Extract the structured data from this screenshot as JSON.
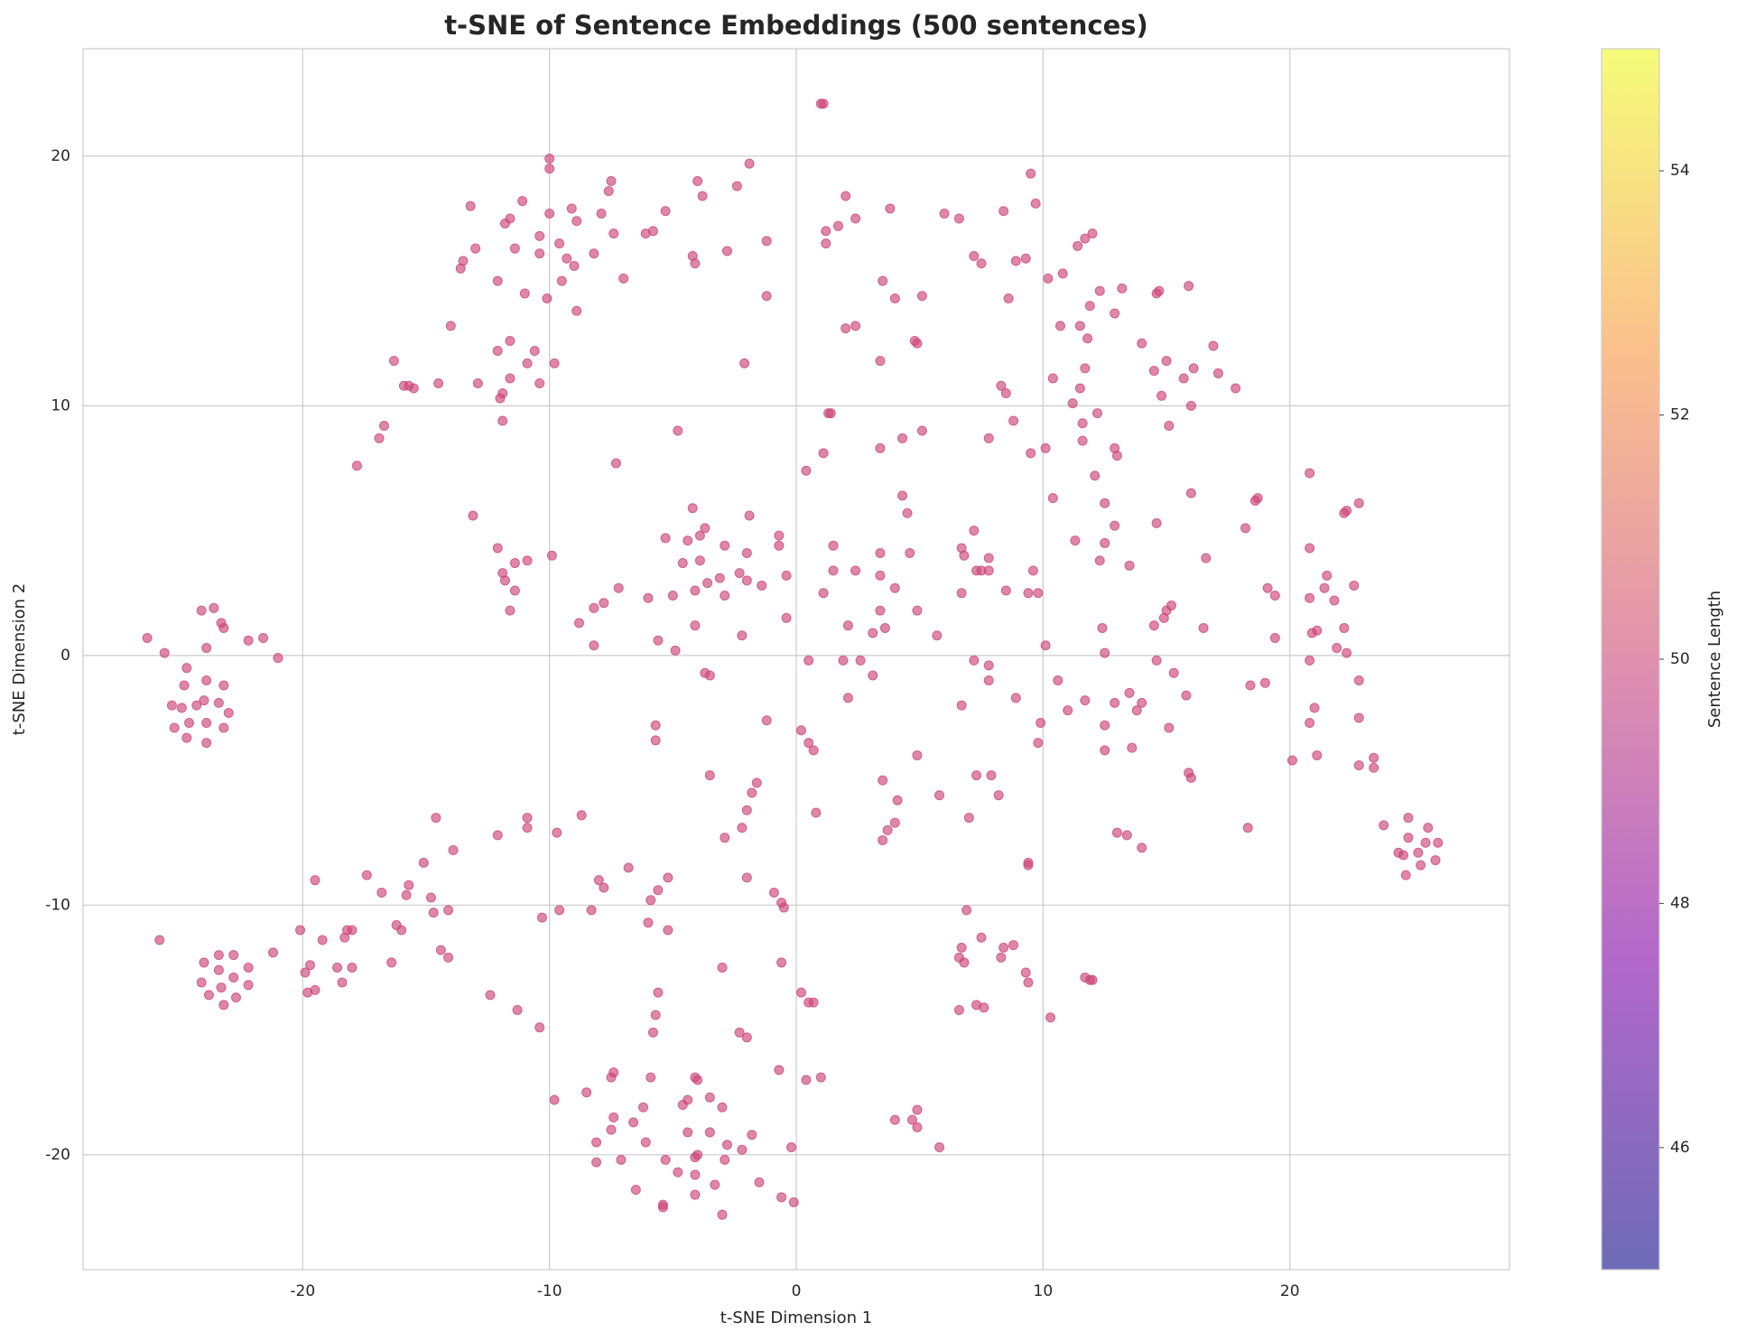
{
  "chart_data": {
    "type": "scatter",
    "title": "t-SNE of Sentence Embeddings (500 sentences)",
    "x_label": "t-SNE Dimension 1",
    "y_label": "t-SNE Dimension 2",
    "color": "#cc4778",
    "grid": true,
    "xlim": [
      -28.9,
      28.9
    ],
    "ylim": [
      -24.6,
      24.3
    ],
    "xticks": [
      -20,
      -10,
      0,
      10,
      20
    ],
    "yticks": [
      -20,
      -10,
      0,
      10,
      20
    ],
    "colorbar": {
      "label": "Sentence Length",
      "colormap": "plasma",
      "lim": [
        45,
        55
      ],
      "ticks": [
        46,
        48,
        50,
        52,
        54
      ]
    },
    "x": [
      -26.3,
      -25.6,
      -24.1,
      -23.6,
      -23.3,
      -23.2,
      -22.2,
      -21.6,
      -21.0,
      -23.9,
      -24.7,
      -24.8,
      -23.9,
      -23.2,
      -25.3,
      -24.9,
      -24.3,
      -24.0,
      -23.4,
      -23.0,
      -24.6,
      -23.9,
      -25.2,
      -23.2,
      -24.7,
      -23.9,
      -25.8,
      -24.0,
      -23.4,
      -22.8,
      -23.4,
      -22.2,
      -24.1,
      -23.3,
      -22.8,
      -22.2,
      -23.8,
      -22.7,
      -23.2,
      23.8,
      24.8,
      25.6,
      24.8,
      25.5,
      26.0,
      24.4,
      24.6,
      25.2,
      25.9,
      25.3,
      24.7,
      -17.8,
      -16.9,
      -16.7,
      -16.3,
      -15.9,
      -15.7,
      -15.5,
      -14.5,
      -14.0,
      -13.6,
      -13.5,
      -13.2,
      -13.0,
      -12.9,
      -12.1,
      -12.1,
      -12.0,
      -11.9,
      -11.9,
      -11.8,
      -11.6,
      -11.6,
      -11.6,
      -11.4,
      -11.1,
      -11.0,
      -10.9,
      -10.6,
      -10.4,
      -10.4,
      -10.4,
      -10.1,
      -10.0,
      -10.0,
      -10.0,
      -9.8,
      -9.6,
      -9.5,
      -9.3,
      -9.1,
      -9.0,
      -8.9,
      -8.9,
      -8.2,
      -7.9,
      -7.6,
      -7.5,
      -7.4,
      -7.0,
      -7.3,
      -5.3,
      -6.1,
      -5.8,
      -4.8,
      -4.2,
      -4.1,
      -4.0,
      -3.8,
      -2.8,
      -2.4,
      -1.9,
      -1.2,
      -1.2,
      -2.1,
      1.0,
      1.1,
      1.2,
      1.2,
      1.1,
      1.4,
      1.3,
      1.7,
      2.0,
      2.0,
      2.4,
      2.4,
      3.8,
      3.4,
      3.5,
      3.4,
      4.0,
      4.3,
      4.8,
      4.9,
      5.1,
      5.1,
      6.0,
      6.6,
      7.2,
      7.5,
      7.8,
      8.3,
      8.4,
      8.6,
      8.5,
      8.8,
      8.9,
      9.3,
      9.5,
      9.7,
      9.5,
      10.1,
      10.2,
      10.4,
      10.8,
      10.7,
      11.2,
      11.4,
      11.5,
      11.5,
      11.6,
      11.6,
      11.7,
      11.7,
      11.8,
      11.9,
      12.0,
      12.1,
      12.2,
      12.3,
      12.9,
      12.9,
      13.0,
      13.2,
      14.0,
      14.5,
      14.6,
      14.7,
      14.8,
      15.0,
      15.1,
      15.7,
      15.9,
      16.1,
      16.0,
      16.9,
      17.1,
      17.8,
      -13.1,
      -12.1,
      -11.9,
      -11.8,
      -11.6,
      -11.4,
      -11.4,
      -10.9,
      -9.9,
      -8.8,
      -8.2,
      -8.2,
      -7.8,
      -7.2,
      -6.0,
      -5.6,
      -5.3,
      -5.0,
      -4.9,
      -4.6,
      -4.4,
      -4.2,
      -4.1,
      -4.1,
      -3.9,
      -3.9,
      -3.7,
      -3.6,
      -3.7,
      -3.5,
      -3.1,
      -2.9,
      -2.9,
      -2.3,
      -2.2,
      -2.0,
      -1.9,
      -2.0,
      -1.4,
      -0.7,
      -0.7,
      -0.4,
      -0.4,
      0.4,
      0.5,
      1.1,
      1.5,
      1.5,
      1.9,
      2.1,
      2.1,
      2.4,
      2.6,
      3.1,
      3.1,
      3.4,
      3.4,
      3.4,
      3.6,
      4.0,
      4.3,
      4.5,
      4.6,
      4.9,
      5.7,
      6.7,
      6.8,
      6.7,
      6.7,
      7.2,
      7.2,
      7.3,
      7.5,
      7.8,
      7.8,
      7.8,
      7.8,
      8.5,
      8.9,
      9.4,
      9.6,
      9.8,
      10.1,
      9.8,
      9.9,
      10.4,
      10.6,
      11.0,
      11.3,
      11.7,
      12.3,
      12.4,
      12.5,
      12.5,
      12.5,
      12.5,
      12.5,
      12.9,
      12.9,
      13.5,
      13.5,
      13.6,
      13.8,
      14.0,
      14.5,
      14.6,
      14.6,
      14.9,
      15.0,
      15.2,
      15.1,
      15.3,
      15.8,
      15.9,
      16.0,
      16.0,
      16.5,
      16.6,
      18.2,
      18.4,
      18.7,
      18.6,
      19.0,
      19.1,
      19.4,
      19.4,
      20.1,
      20.8,
      20.8,
      20.8,
      20.8,
      20.8,
      21.0,
      20.9,
      21.1,
      21.1,
      21.4,
      21.5,
      21.8,
      21.9,
      22.2,
      22.3,
      22.2,
      22.3,
      22.6,
      22.8,
      22.8,
      22.8,
      22.8,
      23.4,
      23.4,
      18.3,
      -14.6,
      -13.9,
      -15.1,
      -14.8,
      -14.7,
      -14.1,
      -15.7,
      -15.8,
      -16.2,
      -16.0,
      -16.4,
      -16.8,
      -17.4,
      -14.4,
      -14.1,
      -12.4,
      -12.1,
      -11.3,
      -10.9,
      -10.9,
      -10.4,
      -10.3,
      -9.7,
      -9.6,
      -8.7,
      -8.3,
      -8.0,
      -7.8,
      -6.8,
      -5.7,
      -5.7,
      -5.6,
      -5.2,
      -5.2,
      -5.9,
      -6.0,
      -3.5,
      -2.9,
      -2.2,
      -2.0,
      -1.8,
      -1.6,
      -1.2,
      -2.0,
      -0.9,
      -0.6,
      -0.5,
      -0.6,
      -3.0,
      0.2,
      0.5,
      0.7,
      0.8,
      3.5,
      4.1,
      4.0,
      3.7,
      3.5,
      4.9,
      5.8,
      7.0,
      7.3,
      7.9,
      8.2,
      9.4,
      9.4,
      13.0,
      13.4,
      14.0,
      -20.1,
      -19.5,
      -19.7,
      -19.2,
      -18.6,
      -18.3,
      -18.2,
      -18.0,
      -18.0,
      -19.9,
      -19.8,
      -19.5,
      -18.4,
      -21.2,
      6.9,
      6.6,
      6.8,
      6.7,
      7.5,
      8.3,
      8.4,
      8.8,
      9.3,
      9.4,
      6.6,
      7.3,
      7.6,
      10.3,
      11.7,
      11.9,
      12.0,
      0.2,
      0.5,
      0.7,
      -5.6,
      -5.7,
      -5.8,
      -2.3,
      -2.0,
      -0.7,
      -7.4,
      -7.5,
      -5.9,
      -4.1,
      -4.0,
      0.4,
      1.0,
      -9.8,
      -8.5,
      -6.2,
      -4.6,
      -4.4,
      -3.5,
      -3.0,
      -7.4,
      -7.5,
      -8.1,
      -6.6,
      -6.1,
      -4.4,
      -3.5,
      -2.8,
      -2.2,
      -1.8,
      -0.2,
      -8.1,
      -7.1,
      -5.3,
      -4.1,
      -4.0,
      -4.1,
      -2.9,
      -4.1,
      -3.3,
      -1.5,
      -6.5,
      -4.8,
      -5.4,
      -5.4,
      -0.6,
      -0.1,
      -3.0,
      4.0,
      4.7,
      4.9,
      4.9,
      5.8
    ],
    "values": [
      0.7,
      0.1,
      1.8,
      1.9,
      1.3,
      1.1,
      0.6,
      0.7,
      -0.1,
      0.3,
      -0.5,
      -1.2,
      -1.0,
      -1.2,
      -2.0,
      -2.1,
      -2.0,
      -1.8,
      -1.9,
      -2.3,
      -2.7,
      -2.7,
      -2.9,
      -2.9,
      -3.3,
      -3.5,
      -11.4,
      -12.3,
      -12.0,
      -12.0,
      -12.6,
      -12.5,
      -13.1,
      -13.3,
      -12.9,
      -13.2,
      -13.6,
      -13.7,
      -14.0,
      -6.8,
      -6.5,
      -6.9,
      -7.3,
      -7.5,
      -7.5,
      -7.9,
      -8.0,
      -7.9,
      -8.2,
      -8.4,
      -8.8,
      7.6,
      8.7,
      9.2,
      11.8,
      10.8,
      10.8,
      10.7,
      10.9,
      13.2,
      15.5,
      15.8,
      18.0,
      16.3,
      10.9,
      15.0,
      12.2,
      10.3,
      10.5,
      9.4,
      17.3,
      17.5,
      12.6,
      11.1,
      16.3,
      18.2,
      14.5,
      11.7,
      12.2,
      16.8,
      16.1,
      10.9,
      14.3,
      19.9,
      19.5,
      17.7,
      11.7,
      16.5,
      15.0,
      15.9,
      17.9,
      15.6,
      17.4,
      13.8,
      16.1,
      17.7,
      18.6,
      19.0,
      16.9,
      15.1,
      7.7,
      17.8,
      16.9,
      17.0,
      9.0,
      16.0,
      15.7,
      19.0,
      18.4,
      16.2,
      18.8,
      19.7,
      16.6,
      14.4,
      11.7,
      22.1,
      22.1,
      17.0,
      16.5,
      8.1,
      9.7,
      9.7,
      17.2,
      18.4,
      13.1,
      13.2,
      17.5,
      17.9,
      11.8,
      15.0,
      8.3,
      14.3,
      8.7,
      12.6,
      12.5,
      14.4,
      9.0,
      17.7,
      17.5,
      16.0,
      15.7,
      8.7,
      10.8,
      17.8,
      14.3,
      10.5,
      9.4,
      15.8,
      15.9,
      19.3,
      18.1,
      8.1,
      8.3,
      15.1,
      11.1,
      15.3,
      13.2,
      10.1,
      16.4,
      10.7,
      13.2,
      9.3,
      8.6,
      16.7,
      11.5,
      12.7,
      14.0,
      16.9,
      7.2,
      9.7,
      14.6,
      8.3,
      13.7,
      8.0,
      14.7,
      12.5,
      11.4,
      14.5,
      14.6,
      10.4,
      11.8,
      9.2,
      11.1,
      14.8,
      11.5,
      10.0,
      12.4,
      11.3,
      10.7,
      5.6,
      4.3,
      3.3,
      3.0,
      1.8,
      3.7,
      2.6,
      3.8,
      4.0,
      1.3,
      1.9,
      0.4,
      2.1,
      2.7,
      2.3,
      0.6,
      4.7,
      2.4,
      0.2,
      3.7,
      4.6,
      5.9,
      2.6,
      1.2,
      3.8,
      4.8,
      5.1,
      2.9,
      -0.7,
      -0.8,
      3.1,
      4.4,
      2.4,
      3.3,
      0.8,
      4.1,
      5.6,
      3.0,
      2.8,
      4.8,
      4.4,
      3.2,
      1.5,
      7.4,
      -0.2,
      2.5,
      4.4,
      3.4,
      -0.2,
      1.2,
      -1.7,
      3.4,
      -0.2,
      0.9,
      -0.8,
      4.1,
      3.2,
      1.8,
      1.1,
      2.7,
      6.4,
      5.7,
      4.1,
      1.8,
      0.8,
      4.3,
      4.0,
      2.5,
      -2.0,
      5.0,
      -0.2,
      3.4,
      3.4,
      3.9,
      3.4,
      -0.4,
      -1.0,
      2.6,
      -1.7,
      2.5,
      3.4,
      2.5,
      0.4,
      -3.5,
      -2.7,
      6.3,
      -1.0,
      -2.2,
      4.6,
      -1.8,
      3.8,
      1.1,
      6.1,
      4.5,
      0.1,
      -2.8,
      -3.8,
      5.2,
      -1.9,
      3.6,
      -1.5,
      -3.7,
      -2.2,
      -1.9,
      1.2,
      5.3,
      -0.2,
      1.5,
      1.8,
      2.0,
      -2.9,
      -0.7,
      -1.6,
      -4.7,
      -4.9,
      6.5,
      1.1,
      3.9,
      5.1,
      -1.2,
      6.3,
      6.2,
      -1.1,
      2.7,
      2.4,
      0.7,
      -4.2,
      7.3,
      4.3,
      2.3,
      -0.2,
      -2.7,
      -2.1,
      0.9,
      1.0,
      -4.0,
      2.7,
      3.2,
      2.2,
      0.3,
      5.7,
      5.8,
      1.1,
      0.1,
      2.8,
      6.1,
      -1.0,
      -2.5,
      -4.4,
      -4.5,
      -4.1,
      -6.9,
      -6.5,
      -7.8,
      -8.3,
      -9.7,
      -10.3,
      -10.2,
      -9.2,
      -9.6,
      -10.8,
      -11.0,
      -12.3,
      -9.5,
      -8.8,
      -11.8,
      -12.1,
      -13.6,
      -7.2,
      -14.2,
      -6.5,
      -6.9,
      -14.9,
      -10.5,
      -7.1,
      -10.2,
      -6.4,
      -10.2,
      -9.0,
      -9.3,
      -8.5,
      -2.8,
      -3.4,
      -9.4,
      -8.9,
      -11.0,
      -9.8,
      -10.7,
      -4.8,
      -7.3,
      -6.9,
      -6.2,
      -5.5,
      -5.1,
      -2.6,
      -8.9,
      -9.5,
      -9.9,
      -10.1,
      -12.3,
      -12.5,
      -3.0,
      -3.5,
      -3.8,
      -6.3,
      -5.0,
      -5.8,
      -6.7,
      -7.0,
      -7.4,
      -4.0,
      -5.6,
      -6.5,
      -4.8,
      -4.8,
      -5.6,
      -8.3,
      -8.4,
      -7.1,
      -7.2,
      -7.7,
      -11.0,
      -9.0,
      -12.4,
      -11.4,
      -12.5,
      -11.3,
      -11.0,
      -11.0,
      -12.5,
      -12.7,
      -13.5,
      -13.4,
      -13.1,
      -11.9,
      -10.2,
      -12.1,
      -12.3,
      -11.7,
      -11.3,
      -12.1,
      -11.7,
      -11.6,
      -12.7,
      -13.1,
      -14.2,
      -14.0,
      -14.1,
      -14.5,
      -12.9,
      -13.0,
      -13.0,
      -13.5,
      -13.9,
      -13.9,
      -13.5,
      -14.4,
      -15.1,
      -15.1,
      -15.3,
      -16.6,
      -16.7,
      -16.9,
      -16.9,
      -16.9,
      -17.0,
      -17.0,
      -16.9,
      -17.8,
      -17.5,
      -18.1,
      -18.0,
      -17.8,
      -17.7,
      -18.1,
      -18.5,
      -19.0,
      -19.5,
      -18.7,
      -19.5,
      -19.1,
      -19.1,
      -19.6,
      -19.8,
      -19.2,
      -19.7,
      -20.3,
      -20.2,
      -20.2,
      -20.1,
      -20.0,
      -20.8,
      -20.2,
      -21.6,
      -21.2,
      -21.1,
      -21.4,
      -20.7,
      -22.0,
      -22.1,
      -21.7,
      -21.9,
      -22.4,
      -18.6,
      -18.6,
      -18.2,
      -18.9,
      -19.7
    ]
  }
}
